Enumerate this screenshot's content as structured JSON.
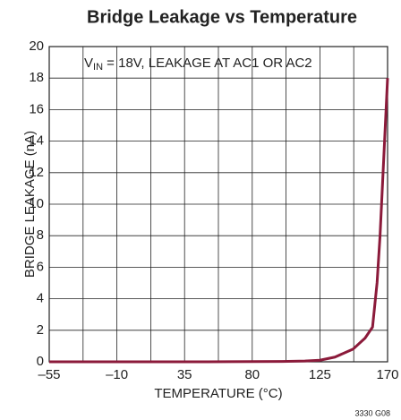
{
  "chart_data": {
    "type": "line",
    "title": "Bridge Leakage vs Temperature",
    "xlabel": "TEMPERATURE (°C)",
    "ylabel": "BRIDGE LEAKAGE (nA)",
    "annotation": {
      "main": "V",
      "sub": "IN",
      "rest": " = 18V, LEAKAGE AT AC1 OR AC2"
    },
    "footnote": "3330 G08",
    "x": [
      -55,
      0,
      50,
      100,
      115,
      125,
      135,
      147,
      155,
      160,
      163,
      165,
      167,
      170
    ],
    "series": [
      {
        "name": "Leakage",
        "color": "#8b1a3a",
        "values": [
          0,
          0,
          0,
          0.02,
          0.05,
          0.1,
          0.3,
          0.8,
          1.5,
          2.2,
          5,
          8,
          12,
          18
        ]
      }
    ],
    "xlim": [
      -55,
      170
    ],
    "xticks": [
      {
        "value": -55,
        "label": "–55"
      },
      {
        "value": -10,
        "label": "–10"
      },
      35,
      80,
      125,
      170
    ],
    "xgrid": [
      -32.5,
      12.5,
      57.5,
      102.5,
      147.5
    ],
    "ylim": [
      0,
      20
    ],
    "yticks": [
      0,
      2,
      4,
      6,
      8,
      10,
      12,
      14,
      16,
      18,
      20
    ],
    "grid": true
  }
}
